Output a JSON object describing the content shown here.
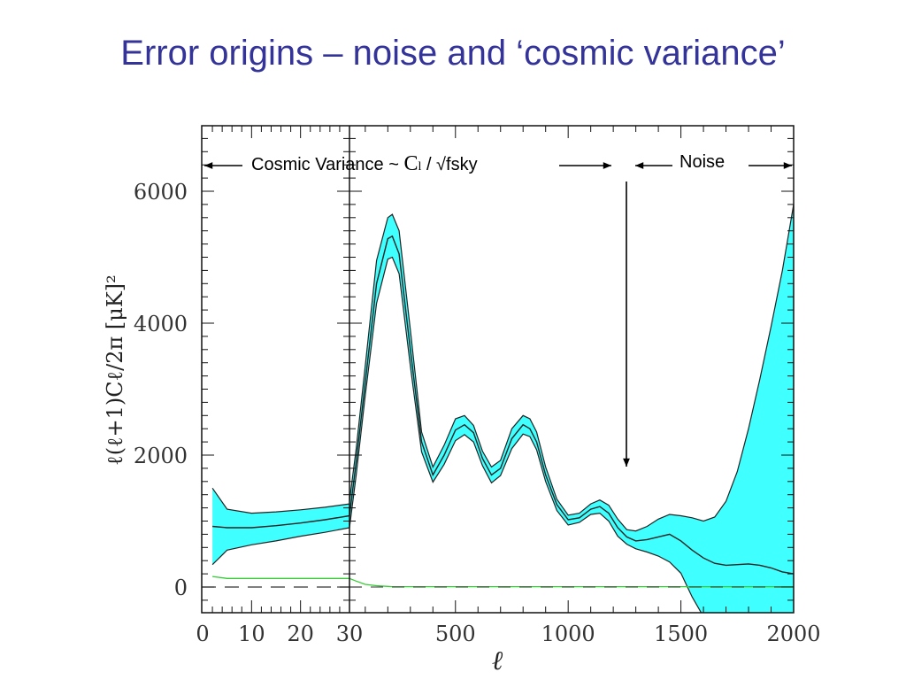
{
  "slide": {
    "title": "Error origins – noise and ‘cosmic variance’"
  },
  "annotations": {
    "cosmic_prefix": "Cosmic Variance ~ ",
    "cosmic_cl": "C",
    "cosmic_cl_sub": "l",
    "cosmic_suffix": " / √fsky",
    "noise": "Noise"
  },
  "colors": {
    "band": "#40ffff",
    "curve": "#222222",
    "noise_line": "#33cc33",
    "axis": "#111111"
  },
  "chart_data": {
    "type": "area",
    "title": "",
    "xlabel": "ℓ",
    "ylabel": "ℓ(ℓ+1)Cℓ/2π   [μK]²",
    "ylim": [
      -380,
      6950
    ],
    "grid": false,
    "x_axis": {
      "segments": [
        {
          "scale": "linear",
          "range": [
            0,
            30
          ],
          "ticks": [
            "0",
            "10",
            "20",
            "30"
          ],
          "tick_values": [
            0,
            10,
            20,
            30
          ]
        },
        {
          "scale": "linear",
          "range": [
            30,
            2000
          ],
          "ticks": [
            "500",
            "1000",
            "1500",
            "2000"
          ],
          "tick_values": [
            500,
            1000,
            1500,
            2000
          ]
        }
      ]
    },
    "y_ticks": [
      "0",
      "2000",
      "4000",
      "6000"
    ],
    "y_tick_values": [
      0,
      2000,
      4000,
      6000
    ],
    "low_l": {
      "x": [
        2,
        5,
        10,
        15,
        20,
        25,
        30
      ],
      "values": [
        920,
        900,
        900,
        930,
        970,
        1020,
        1080
      ],
      "upper": [
        1500,
        1180,
        1120,
        1140,
        1170,
        1210,
        1260
      ],
      "lower": [
        340,
        560,
        640,
        700,
        770,
        830,
        900
      ],
      "noise": [
        160,
        130,
        130,
        130,
        130,
        130,
        130
      ]
    },
    "high_l": {
      "x": [
        30,
        60,
        100,
        150,
        200,
        220,
        250,
        300,
        350,
        400,
        450,
        500,
        540,
        580,
        620,
        660,
        700,
        750,
        800,
        830,
        860,
        900,
        950,
        1000,
        1050,
        1100,
        1140,
        1180,
        1220,
        1260,
        1300,
        1350,
        1400,
        1450,
        1500,
        1550,
        1600,
        1650,
        1700,
        1750,
        1800,
        1850,
        1900,
        1950,
        2000
      ],
      "values": [
        1080,
        1900,
        3100,
        4600,
        5280,
        5320,
        5050,
        3600,
        2200,
        1700,
        2000,
        2380,
        2460,
        2340,
        1950,
        1700,
        1800,
        2250,
        2460,
        2400,
        2200,
        1700,
        1250,
        1020,
        1050,
        1180,
        1220,
        1120,
        900,
        760,
        700,
        720,
        760,
        800,
        700,
        560,
        440,
        360,
        330,
        340,
        350,
        330,
        290,
        230,
        200
      ],
      "upper": [
        1300,
        2100,
        3350,
        4950,
        5600,
        5650,
        5400,
        3900,
        2350,
        1820,
        2150,
        2550,
        2600,
        2450,
        2060,
        1820,
        1920,
        2400,
        2600,
        2550,
        2350,
        1820,
        1330,
        1090,
        1120,
        1260,
        1320,
        1240,
        1030,
        870,
        850,
        920,
        1030,
        1100,
        1080,
        1050,
        1000,
        1060,
        1300,
        1750,
        2400,
        3150,
        3950,
        4800,
        5800
      ],
      "lower": [
        900,
        1700,
        2900,
        4300,
        4970,
        5000,
        4750,
        3350,
        2050,
        1590,
        1860,
        2220,
        2310,
        2200,
        1840,
        1580,
        1690,
        2100,
        2320,
        2280,
        2080,
        1600,
        1160,
        940,
        980,
        1100,
        1120,
        1000,
        770,
        650,
        580,
        530,
        470,
        380,
        210,
        -150,
        -450,
        -700,
        -850,
        -950,
        -1050,
        -1150,
        -1250,
        -1350,
        -1450
      ],
      "noise": [
        130,
        90,
        40,
        20,
        10,
        5,
        5,
        5,
        5,
        5,
        5,
        5,
        5,
        5,
        5,
        5,
        5,
        5,
        5,
        5,
        5,
        5,
        5,
        5,
        5,
        5,
        5,
        5,
        5,
        5,
        5,
        5,
        5,
        5,
        5,
        5,
        5,
        5,
        5,
        5,
        5,
        5,
        5,
        5,
        5
      ]
    }
  }
}
